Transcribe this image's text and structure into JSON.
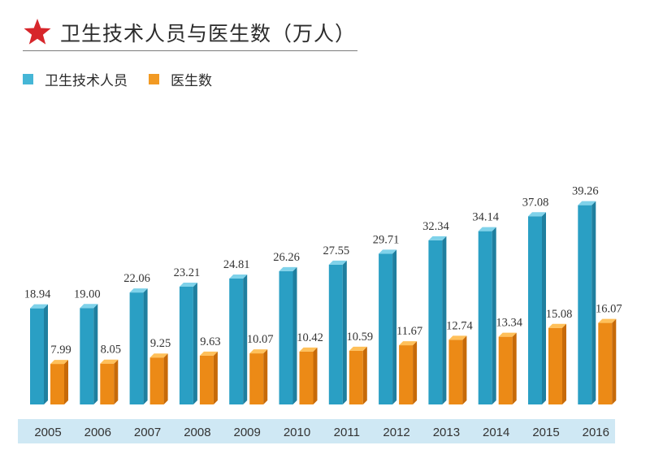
{
  "title": "卫生技术人员与医生数（万人）",
  "colors": {
    "accent_star": "#d7262b",
    "series_a": "#45b6d6",
    "series_b": "#f29a23",
    "axis_band": "#cfe8f4"
  },
  "icons": {
    "title_icon": "star-icon"
  },
  "chart_data": {
    "type": "bar",
    "title": "卫生技术人员与医生数（万人）",
    "categories": [
      "2005",
      "2006",
      "2007",
      "2008",
      "2009",
      "2010",
      "2011",
      "2012",
      "2013",
      "2014",
      "2015",
      "2016"
    ],
    "series": [
      {
        "name": "卫生技术人员",
        "values": [
          18.94,
          19.0,
          22.06,
          23.21,
          24.81,
          26.26,
          27.55,
          29.71,
          32.34,
          34.14,
          37.08,
          39.26
        ],
        "labels": [
          "18.94",
          "19.00",
          "22.06",
          "23.21",
          "24.81",
          "26.26",
          "27.55",
          "29.71",
          "32.34",
          "34.14",
          "37.08",
          "39.26"
        ]
      },
      {
        "name": "医生数",
        "values": [
          7.99,
          8.05,
          9.25,
          9.63,
          10.07,
          10.42,
          10.59,
          11.67,
          12.74,
          13.34,
          15.08,
          16.07
        ],
        "labels": [
          "7.99",
          "8.05",
          "9.25",
          "9.63",
          "10.07",
          "10.42",
          "10.59",
          "11.67",
          "12.74",
          "13.34",
          "15.08",
          "16.07"
        ]
      }
    ],
    "legend_position": "top-left",
    "grid": false
  }
}
